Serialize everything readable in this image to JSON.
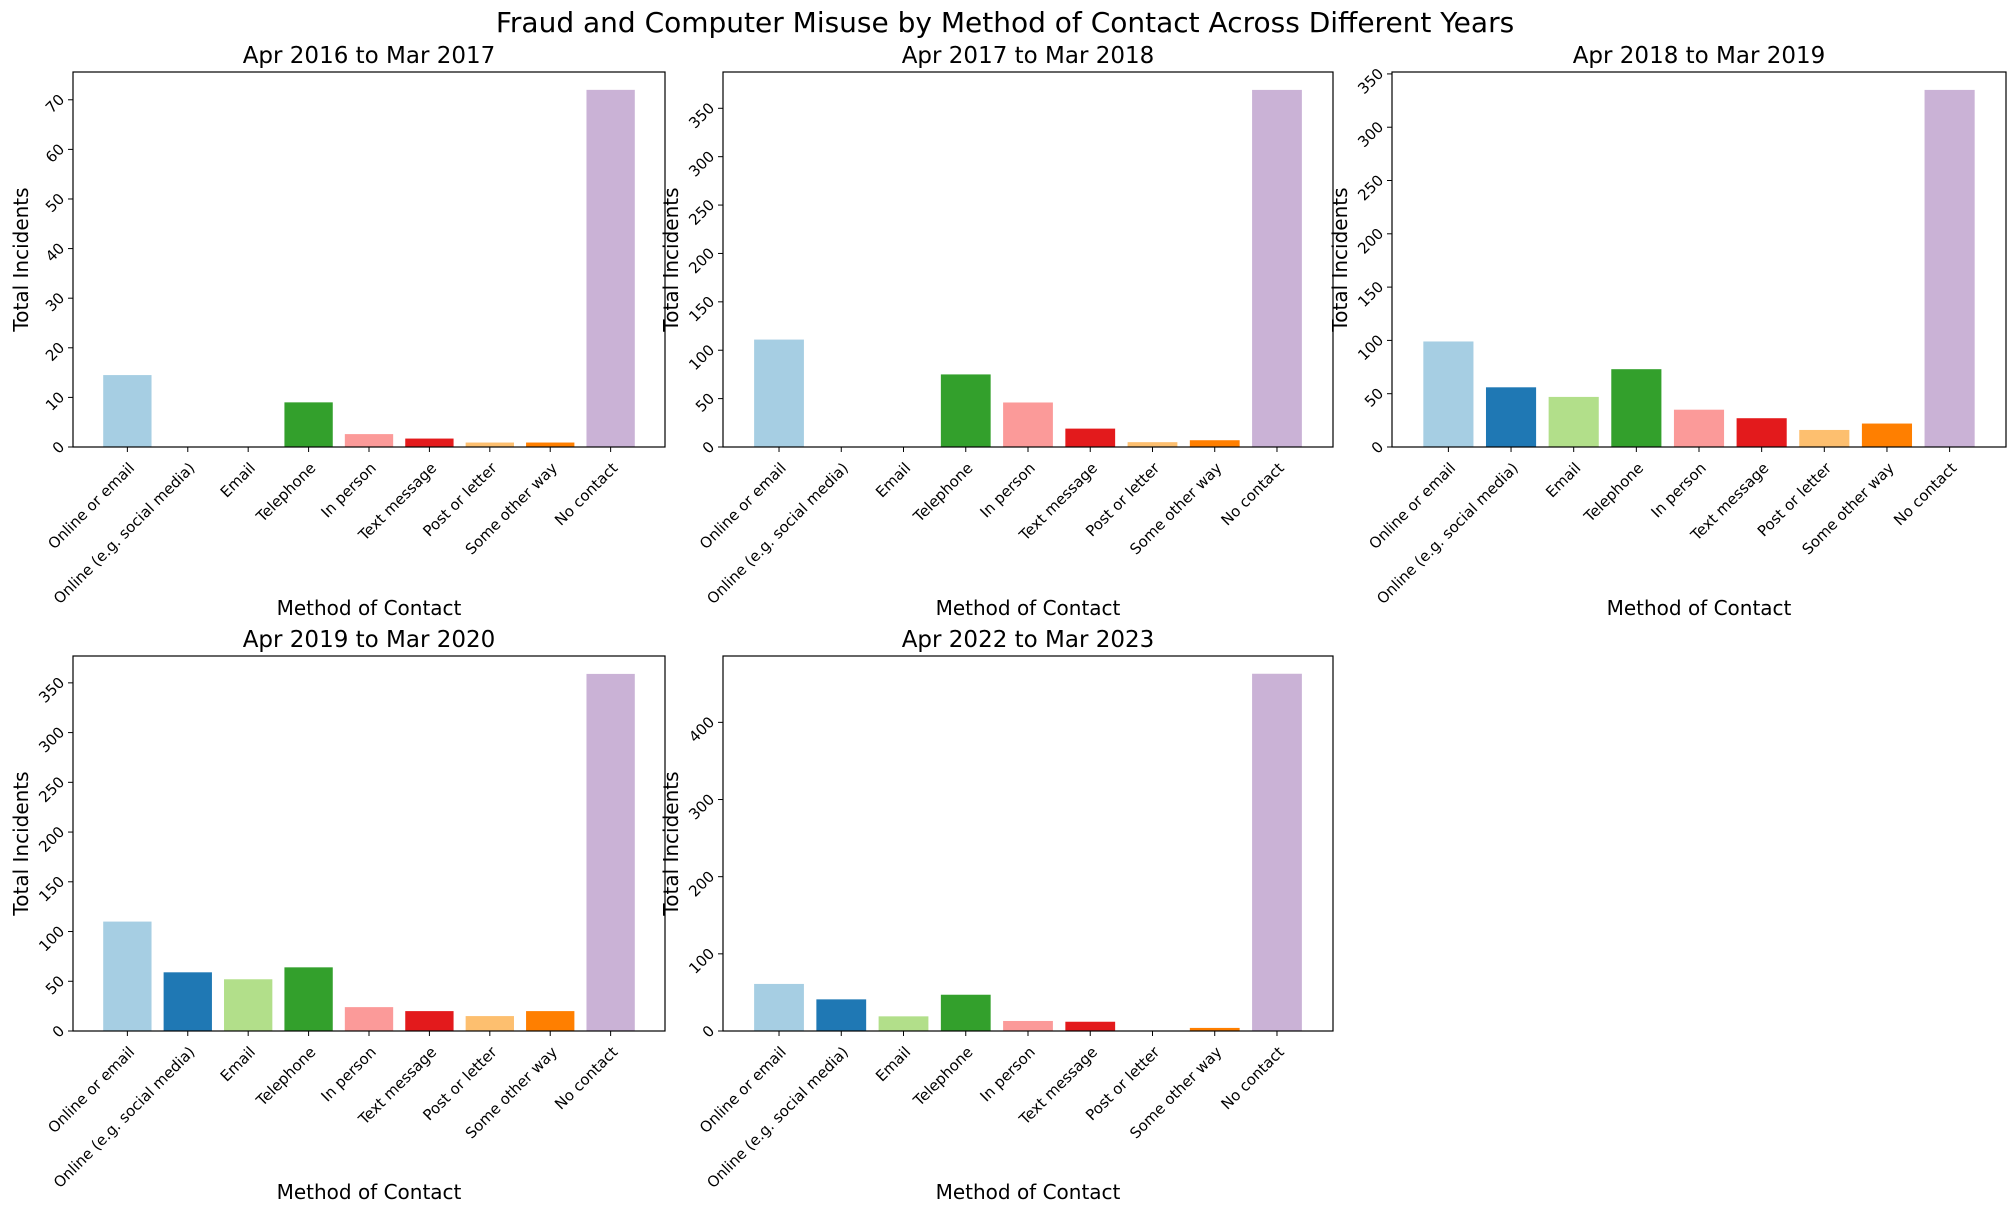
{
  "title": "Fraud and Computer Misuse by Method of Contact Across Different Years",
  "colors": [
    "#a6cee3",
    "#1f78b4",
    "#b2df8a",
    "#33a02c",
    "#fb9a99",
    "#e31a1c",
    "#fdbf6f",
    "#ff7f00",
    "#cab2d6"
  ],
  "chart_data": [
    {
      "type": "bar",
      "title": "Apr 2016 to Mar 2017",
      "xlabel": "Method of Contact",
      "ylabel": "Total Incidents",
      "categories": [
        "Online or email",
        "Online (e.g. social media)",
        "Email",
        "Telephone",
        "In person",
        "Text message",
        "Post or letter",
        "Some other way",
        "No contact"
      ],
      "values": [
        14.5,
        0,
        0,
        9,
        2.6,
        1.7,
        0.9,
        0.9,
        72
      ],
      "yticks": [
        0,
        10,
        20,
        30,
        40,
        50,
        60,
        70
      ],
      "ylim": [
        0,
        75.6
      ],
      "grid": false
    },
    {
      "type": "bar",
      "title": "Apr 2017 to Mar 2018",
      "xlabel": "Method of Contact",
      "ylabel": "Total Incidents",
      "categories": [
        "Online or email",
        "Online (e.g. social media)",
        "Email",
        "Telephone",
        "In person",
        "Text message",
        "Post or letter",
        "Some other way",
        "No contact"
      ],
      "values": [
        111,
        0,
        0,
        75,
        46,
        19,
        5,
        7,
        369
      ],
      "yticks": [
        0,
        50,
        100,
        150,
        200,
        250,
        300,
        350
      ],
      "ylim": [
        0,
        387.5
      ],
      "grid": false
    },
    {
      "type": "bar",
      "title": "Apr 2018 to Mar 2019",
      "xlabel": "Method of Contact",
      "ylabel": "Total Incidents",
      "categories": [
        "Online or email",
        "Online (e.g. social media)",
        "Email",
        "Telephone",
        "In person",
        "Text message",
        "Post or letter",
        "Some other way",
        "No contact"
      ],
      "values": [
        99,
        56,
        47,
        73,
        35,
        27,
        16,
        22,
        335
      ],
      "yticks": [
        0,
        50,
        100,
        150,
        200,
        250,
        300,
        350
      ],
      "ylim": [
        0,
        351.8
      ],
      "grid": false
    },
    {
      "type": "bar",
      "title": "Apr 2019 to Mar 2020",
      "xlabel": "Method of Contact",
      "ylabel": "Total Incidents",
      "categories": [
        "Online or email",
        "Online (e.g. social media)",
        "Email",
        "Telephone",
        "In person",
        "Text message",
        "Post or letter",
        "Some other way",
        "No contact"
      ],
      "values": [
        110,
        59,
        52,
        64,
        24,
        20,
        15,
        20,
        359
      ],
      "yticks": [
        0,
        50,
        100,
        150,
        200,
        250,
        300,
        350
      ],
      "ylim": [
        0,
        377
      ],
      "grid": false
    },
    {
      "type": "bar",
      "title": "Apr 2022 to Mar 2023",
      "xlabel": "Method of Contact",
      "ylabel": "Total Incidents",
      "categories": [
        "Online or email",
        "Online (e.g. social media)",
        "Email",
        "Telephone",
        "In person",
        "Text message",
        "Post or letter",
        "Some other way",
        "No contact"
      ],
      "values": [
        61,
        41,
        19,
        47,
        13,
        12,
        0,
        4,
        463
      ],
      "yticks": [
        0,
        100,
        200,
        300,
        400
      ],
      "ylim": [
        0,
        486
      ],
      "grid": false
    }
  ]
}
